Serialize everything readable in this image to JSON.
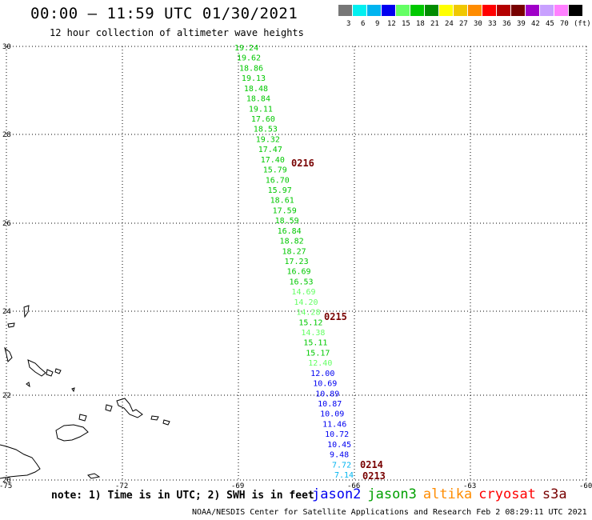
{
  "header": {
    "title": "00:00 – 11:59 UTC 01/30/2021",
    "subtitle": "12 hour collection of altimeter wave heights"
  },
  "scale": {
    "unit": "(ft)",
    "items": [
      {
        "label": "3",
        "color": "#777777"
      },
      {
        "label": "6",
        "color": "#00f0f0"
      },
      {
        "label": "9",
        "color": "#00b4f0"
      },
      {
        "label": "12",
        "color": "#0000f0"
      },
      {
        "label": "15",
        "color": "#64ff64"
      },
      {
        "label": "18",
        "color": "#00c800"
      },
      {
        "label": "21",
        "color": "#008c00"
      },
      {
        "label": "24",
        "color": "#ffff00"
      },
      {
        "label": "27",
        "color": "#f0c800"
      },
      {
        "label": "30",
        "color": "#ff8c00"
      },
      {
        "label": "33",
        "color": "#ff0000"
      },
      {
        "label": "36",
        "color": "#b40000"
      },
      {
        "label": "39",
        "color": "#780000"
      },
      {
        "label": "42",
        "color": "#a000c8"
      },
      {
        "label": "45",
        "color": "#c8a0ff"
      },
      {
        "label": "70",
        "color": "#ff80ff"
      },
      {
        "label": "",
        "color": "#000000"
      }
    ]
  },
  "map": {
    "lat_labels": [
      "30",
      "28",
      "26",
      "24",
      "22",
      "20"
    ],
    "lon_labels": [
      "-75",
      "-72",
      "-69",
      "-66",
      "-63",
      "-60"
    ],
    "time_marks": [
      {
        "label": "0216",
        "color": "#780000"
      },
      {
        "label": "0215",
        "color": "#780000"
      },
      {
        "label": "0214",
        "color": "#780000"
      },
      {
        "label": "0213",
        "color": "#780000"
      }
    ],
    "readings": [
      {
        "v": "19.24",
        "c": "#00c800"
      },
      {
        "v": "19.62",
        "c": "#00c800"
      },
      {
        "v": "18.86",
        "c": "#00c800"
      },
      {
        "v": "19.13",
        "c": "#00c800"
      },
      {
        "v": "18.48",
        "c": "#00c800"
      },
      {
        "v": "18.84",
        "c": "#00c800"
      },
      {
        "v": "19.11",
        "c": "#00c800"
      },
      {
        "v": "17.60",
        "c": "#00c800"
      },
      {
        "v": "18.53",
        "c": "#00c800"
      },
      {
        "v": "19.32",
        "c": "#00c800"
      },
      {
        "v": "17.47",
        "c": "#00c800"
      },
      {
        "v": "17.40",
        "c": "#00c800"
      },
      {
        "v": "15.79",
        "c": "#00c800"
      },
      {
        "v": "16.70",
        "c": "#00c800"
      },
      {
        "v": "15.97",
        "c": "#00c800"
      },
      {
        "v": "18.61",
        "c": "#00c800"
      },
      {
        "v": "17.59",
        "c": "#00c800"
      },
      {
        "v": "18.59",
        "c": "#00c800"
      },
      {
        "v": "16.84",
        "c": "#00c800"
      },
      {
        "v": "18.82",
        "c": "#00c800"
      },
      {
        "v": "18.27",
        "c": "#00c800"
      },
      {
        "v": "17.23",
        "c": "#00c800"
      },
      {
        "v": "16.69",
        "c": "#00c800"
      },
      {
        "v": "16.53",
        "c": "#00c800"
      },
      {
        "v": "14.69",
        "c": "#64ff64"
      },
      {
        "v": "14.20",
        "c": "#64ff64"
      },
      {
        "v": "14.28",
        "c": "#64ff64"
      },
      {
        "v": "15.12",
        "c": "#00c800"
      },
      {
        "v": "14.38",
        "c": "#64ff64"
      },
      {
        "v": "15.11",
        "c": "#00c800"
      },
      {
        "v": "15.17",
        "c": "#00c800"
      },
      {
        "v": "12.40",
        "c": "#64ff64"
      },
      {
        "v": "12.00",
        "c": "#0000f0"
      },
      {
        "v": "10.69",
        "c": "#0000f0"
      },
      {
        "v": "10.89",
        "c": "#0000f0"
      },
      {
        "v": "10.87",
        "c": "#0000f0"
      },
      {
        "v": "10.09",
        "c": "#0000f0"
      },
      {
        "v": "11.46",
        "c": "#0000f0"
      },
      {
        "v": "10.72",
        "c": "#0000f0"
      },
      {
        "v": "10.45",
        "c": "#0000f0"
      },
      {
        "v": "9.48",
        "c": "#0000f0"
      },
      {
        "v": "7.72",
        "c": "#00b4f0"
      },
      {
        "v": "7.14",
        "c": "#00b4f0"
      }
    ]
  },
  "footer": {
    "note": "note: 1) Time is in UTC; 2) SWH is in feet",
    "credit": "NOAA/NESDIS Center for Satellite Applications and Research   Feb  2 08:29:11 UTC 2021",
    "satellites": [
      {
        "name": "jason2",
        "color": "#0000f0"
      },
      {
        "name": "jason3",
        "color": "#00a000"
      },
      {
        "name": "altika",
        "color": "#ff8c00"
      },
      {
        "name": "cryosat",
        "color": "#ff0000"
      },
      {
        "name": "s3a",
        "color": "#780000"
      }
    ]
  }
}
